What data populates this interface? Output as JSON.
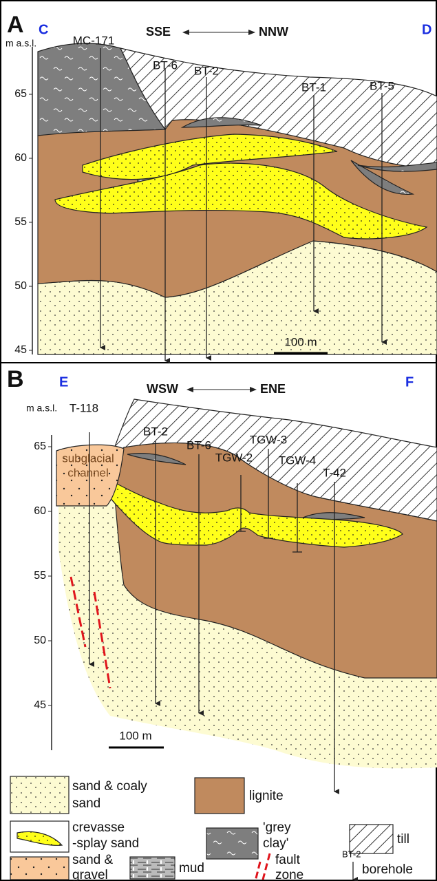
{
  "panel_a": {
    "label": "A",
    "left_end": "C",
    "right_end": "D",
    "direction_left": "SSE",
    "direction_right": "NNW",
    "axis_title": "m a.s.l.",
    "axis_ticks": [
      "65",
      "60",
      "55",
      "50",
      "45"
    ],
    "boreholes": [
      "MC-171",
      "BT-6",
      "BT-2",
      "BT-1",
      "BT-5"
    ],
    "scale_bar": "100 m"
  },
  "panel_b": {
    "label": "B",
    "left_end": "E",
    "right_end": "F",
    "direction_left": "WSW",
    "direction_right": "ENE",
    "axis_title": "m a.s.l.",
    "axis_ticks": [
      "65",
      "60",
      "55",
      "50",
      "45"
    ],
    "boreholes": [
      "T-118",
      "BT-2",
      "BT-6",
      "TGW-2",
      "TGW-3",
      "TGW-4",
      "T-42"
    ],
    "channel_label": [
      "subglacial",
      "channel"
    ],
    "scale_bar": "100 m"
  },
  "legend": {
    "sand": [
      "sand & coaly",
      "sand"
    ],
    "lignite": "lignite",
    "crevasse": [
      "crevasse",
      "-splay sand"
    ],
    "grey_clay": [
      "'grey",
      "clay'"
    ],
    "till": "till",
    "gravel": [
      "sand &",
      "gravel"
    ],
    "mud": "mud",
    "fault": [
      "fault",
      "zone"
    ],
    "borehole_example": "BT-2",
    "borehole": "borehole"
  }
}
